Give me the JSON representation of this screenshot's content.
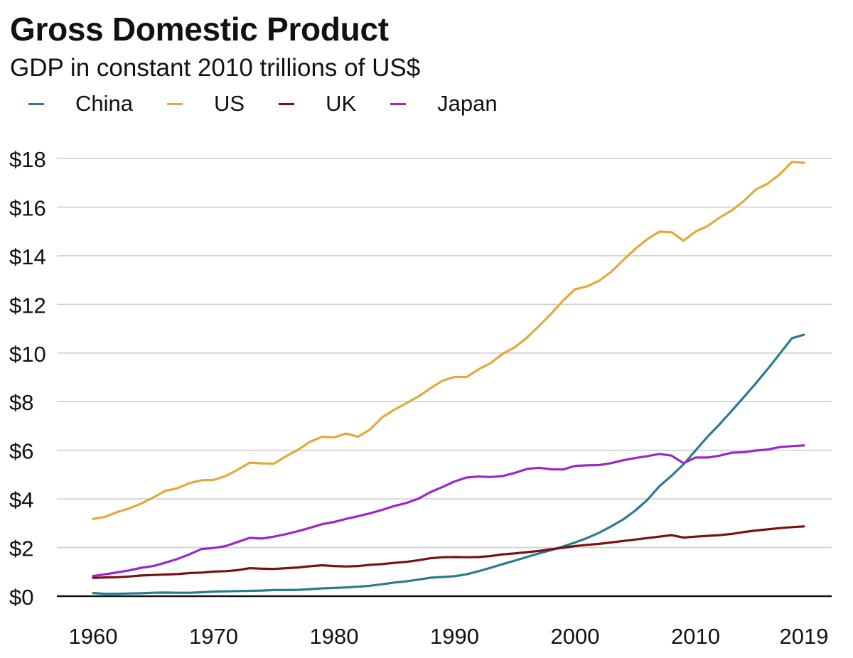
{
  "chart_data": {
    "type": "line",
    "title": "Gross Domestic Product",
    "subtitle": "GDP in constant 2010 trillions of US$",
    "xlabel": "",
    "ylabel": "",
    "xlim": [
      1960,
      2019
    ],
    "ylim": [
      0,
      18
    ],
    "x_ticks": [
      1960,
      1970,
      1980,
      1990,
      2000,
      2010,
      2019
    ],
    "y_ticks": [
      {
        "value": 0,
        "label": "$0"
      },
      {
        "value": 2,
        "label": "$2"
      },
      {
        "value": 4,
        "label": "$4"
      },
      {
        "value": 6,
        "label": "$6"
      },
      {
        "value": 8,
        "label": "$8"
      },
      {
        "value": 10,
        "label": "$10"
      },
      {
        "value": 12,
        "label": "$12"
      },
      {
        "value": 14,
        "label": "$14"
      },
      {
        "value": 16,
        "label": "$16"
      },
      {
        "value": 18,
        "label": "$18"
      }
    ],
    "grid": "horizontal",
    "legend_position": "top-left",
    "x": [
      1960,
      1961,
      1962,
      1963,
      1964,
      1965,
      1966,
      1967,
      1968,
      1969,
      1970,
      1971,
      1972,
      1973,
      1974,
      1975,
      1976,
      1977,
      1978,
      1979,
      1980,
      1981,
      1982,
      1983,
      1984,
      1985,
      1986,
      1987,
      1988,
      1989,
      1990,
      1991,
      1992,
      1993,
      1994,
      1995,
      1996,
      1997,
      1998,
      1999,
      2000,
      2001,
      2002,
      2003,
      2004,
      2005,
      2006,
      2007,
      2008,
      2009,
      2010,
      2011,
      2012,
      2013,
      2014,
      2015,
      2016,
      2017,
      2018,
      2019
    ],
    "series": [
      {
        "name": "China",
        "color": "#2a7b8f",
        "values": [
          0.13,
          0.1,
          0.1,
          0.11,
          0.12,
          0.14,
          0.15,
          0.14,
          0.14,
          0.16,
          0.19,
          0.2,
          0.21,
          0.22,
          0.23,
          0.25,
          0.25,
          0.26,
          0.29,
          0.32,
          0.34,
          0.36,
          0.39,
          0.43,
          0.49,
          0.56,
          0.61,
          0.68,
          0.76,
          0.79,
          0.82,
          0.9,
          1.03,
          1.17,
          1.32,
          1.46,
          1.61,
          1.76,
          1.89,
          2.04,
          2.21,
          2.39,
          2.61,
          2.87,
          3.16,
          3.52,
          3.96,
          4.52,
          4.95,
          5.42,
          5.99,
          6.56,
          7.07,
          7.62,
          8.18,
          8.75,
          9.35,
          9.97,
          10.61,
          10.75
        ]
      },
      {
        "name": "US",
        "color": "#e2a93b",
        "values": [
          3.18,
          3.26,
          3.46,
          3.61,
          3.81,
          4.06,
          4.33,
          4.44,
          4.65,
          4.77,
          4.78,
          4.94,
          5.2,
          5.49,
          5.46,
          5.45,
          5.75,
          6.02,
          6.35,
          6.55,
          6.53,
          6.69,
          6.56,
          6.86,
          7.36,
          7.67,
          7.94,
          8.21,
          8.55,
          8.86,
          9.02,
          9.01,
          9.33,
          9.59,
          9.97,
          10.24,
          10.63,
          11.11,
          11.61,
          12.15,
          12.62,
          12.74,
          12.97,
          13.34,
          13.82,
          14.28,
          14.68,
          14.99,
          14.97,
          14.62,
          14.99,
          15.22,
          15.57,
          15.86,
          16.25,
          16.72,
          16.97,
          17.35,
          17.86,
          17.82
        ]
      },
      {
        "name": "UK",
        "color": "#7a1010",
        "values": [
          0.75,
          0.77,
          0.78,
          0.81,
          0.85,
          0.87,
          0.89,
          0.91,
          0.95,
          0.97,
          1.01,
          1.03,
          1.07,
          1.15,
          1.13,
          1.12,
          1.15,
          1.18,
          1.23,
          1.27,
          1.24,
          1.22,
          1.24,
          1.29,
          1.32,
          1.37,
          1.41,
          1.48,
          1.56,
          1.6,
          1.61,
          1.6,
          1.61,
          1.65,
          1.72,
          1.76,
          1.81,
          1.86,
          1.93,
          1.99,
          2.06,
          2.11,
          2.15,
          2.21,
          2.27,
          2.33,
          2.39,
          2.45,
          2.51,
          2.41,
          2.45,
          2.48,
          2.51,
          2.56,
          2.64,
          2.7,
          2.75,
          2.8,
          2.84,
          2.87
        ]
      },
      {
        "name": "Japan",
        "color": "#9b27c9",
        "values": [
          0.83,
          0.9,
          0.98,
          1.06,
          1.17,
          1.24,
          1.38,
          1.53,
          1.72,
          1.94,
          1.98,
          2.06,
          2.23,
          2.4,
          2.37,
          2.45,
          2.55,
          2.67,
          2.81,
          2.96,
          3.05,
          3.18,
          3.29,
          3.41,
          3.55,
          3.71,
          3.83,
          4.01,
          4.28,
          4.49,
          4.72,
          4.88,
          4.92,
          4.9,
          4.94,
          5.07,
          5.23,
          5.28,
          5.22,
          5.21,
          5.36,
          5.38,
          5.39,
          5.47,
          5.59,
          5.68,
          5.76,
          5.85,
          5.78,
          5.47,
          5.7,
          5.7,
          5.78,
          5.9,
          5.92,
          5.99,
          6.03,
          6.13,
          6.17,
          6.2
        ]
      }
    ]
  }
}
